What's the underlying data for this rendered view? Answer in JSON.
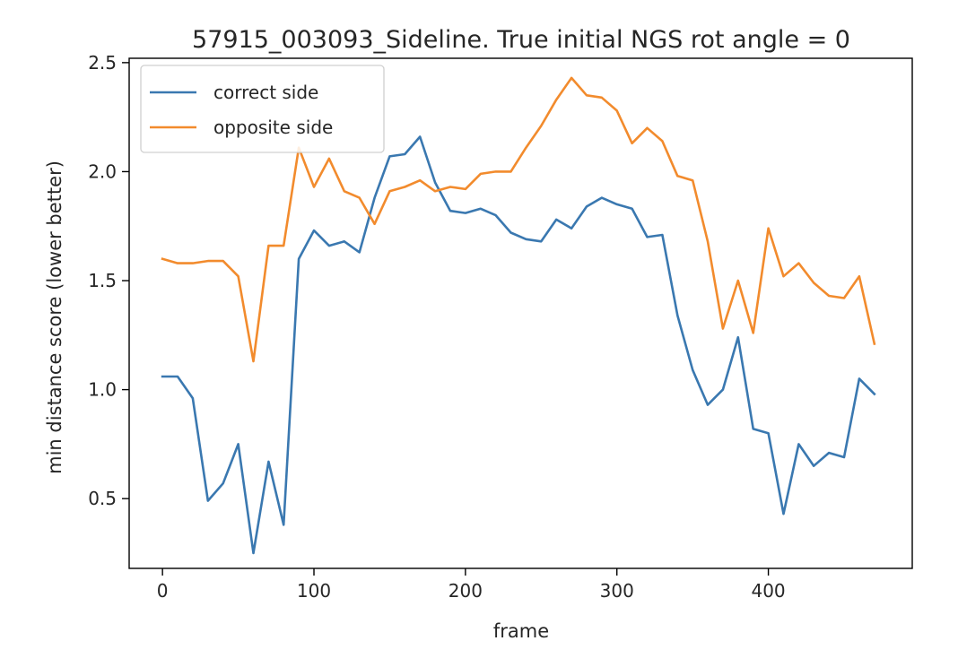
{
  "chart_data": {
    "type": "line",
    "title": "57915_003093_Sideline. True initial NGS rot angle = 0",
    "xlabel": "frame",
    "ylabel": "min distance score (lower better)",
    "xlim": [
      -22,
      495
    ],
    "ylim": [
      0.18,
      2.52
    ],
    "xticks": [
      0,
      100,
      200,
      300,
      400
    ],
    "xtick_labels": [
      "0",
      "100",
      "200",
      "300",
      "400"
    ],
    "yticks": [
      0.5,
      1.0,
      1.5,
      2.0,
      2.5
    ],
    "ytick_labels": [
      "0.5",
      "1.0",
      "1.5",
      "2.0",
      "2.5"
    ],
    "grid": false,
    "legend_position": "upper left",
    "x": [
      0,
      10,
      20,
      30,
      40,
      50,
      60,
      70,
      80,
      90,
      100,
      110,
      120,
      130,
      140,
      150,
      160,
      170,
      180,
      190,
      200,
      210,
      220,
      230,
      240,
      250,
      260,
      270,
      280,
      290,
      300,
      310,
      320,
      330,
      340,
      350,
      360,
      370,
      380,
      390,
      400,
      410,
      420,
      430,
      440,
      450,
      460,
      470
    ],
    "series": [
      {
        "name": "correct side",
        "color": "#3a78b0",
        "values": [
          1.06,
          1.06,
          0.96,
          0.49,
          0.57,
          0.75,
          0.25,
          0.67,
          0.38,
          1.6,
          1.73,
          1.66,
          1.68,
          1.63,
          1.88,
          2.07,
          2.08,
          2.16,
          1.95,
          1.82,
          1.81,
          1.83,
          1.8,
          1.72,
          1.69,
          1.68,
          1.78,
          1.74,
          1.84,
          1.88,
          1.85,
          1.83,
          1.7,
          1.71,
          1.34,
          1.09,
          0.93,
          1.0,
          1.24,
          0.82,
          0.8,
          0.43,
          0.75,
          0.65,
          0.71,
          0.69,
          1.05,
          0.98
        ]
      },
      {
        "name": "opposite side",
        "color": "#f28b2d",
        "values": [
          1.6,
          1.58,
          1.58,
          1.59,
          1.59,
          1.52,
          1.13,
          1.66,
          1.66,
          2.11,
          1.93,
          2.06,
          1.91,
          1.88,
          1.76,
          1.91,
          1.93,
          1.96,
          1.91,
          1.93,
          1.92,
          1.99,
          2.0,
          2.0,
          2.11,
          2.21,
          2.33,
          2.43,
          2.35,
          2.34,
          2.28,
          2.13,
          2.2,
          2.14,
          1.98,
          1.96,
          1.68,
          1.28,
          1.5,
          1.26,
          1.74,
          1.52,
          1.58,
          1.49,
          1.43,
          1.42,
          1.52,
          1.21
        ]
      }
    ]
  }
}
